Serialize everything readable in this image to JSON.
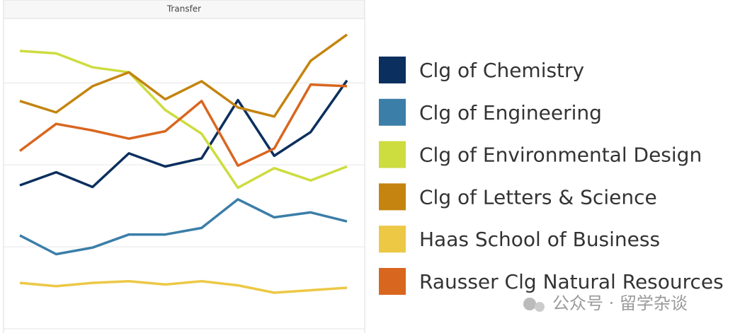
{
  "chart_data": {
    "type": "line",
    "title": "Transfer",
    "x": [
      null,
      null,
      null,
      null,
      null,
      null,
      null,
      null,
      null,
      null
    ],
    "ylim": [
      0,
      3.77
    ],
    "yticks": [
      0,
      1,
      2,
      3
    ],
    "grid": true,
    "series": [
      {
        "name": "Clg of Chemistry",
        "color": "#0b2f5e",
        "values": [
          1.75,
          1.91,
          1.73,
          2.14,
          1.98,
          2.08,
          2.79,
          2.11,
          2.4,
          3.03
        ]
      },
      {
        "name": "Clg of Engineering",
        "color": "#3b7ea8",
        "values": [
          1.14,
          0.91,
          0.99,
          1.15,
          1.15,
          1.23,
          1.58,
          1.36,
          1.42,
          1.31
        ]
      },
      {
        "name": "Clg of Environmental Design",
        "color": "#cddc3f",
        "values": [
          3.39,
          3.36,
          3.19,
          3.13,
          2.67,
          2.38,
          1.72,
          1.96,
          1.81,
          1.98
        ]
      },
      {
        "name": "Clg of Letters & Science",
        "color": "#c4840f",
        "values": [
          2.78,
          2.64,
          2.96,
          3.13,
          2.8,
          3.02,
          2.7,
          2.59,
          3.27,
          3.59
        ]
      },
      {
        "name": "Haas School of Business",
        "color": "#ecc845",
        "values": [
          0.56,
          0.52,
          0.56,
          0.58,
          0.54,
          0.58,
          0.53,
          0.44,
          0.47,
          0.5
        ]
      },
      {
        "name": "Rausser Clg Natural Resources",
        "color": "#d9661f",
        "values": [
          2.17,
          2.5,
          2.42,
          2.32,
          2.41,
          2.78,
          1.99,
          2.2,
          2.98,
          2.96
        ]
      }
    ],
    "watermark": "公众号 · 留学杂谈"
  }
}
